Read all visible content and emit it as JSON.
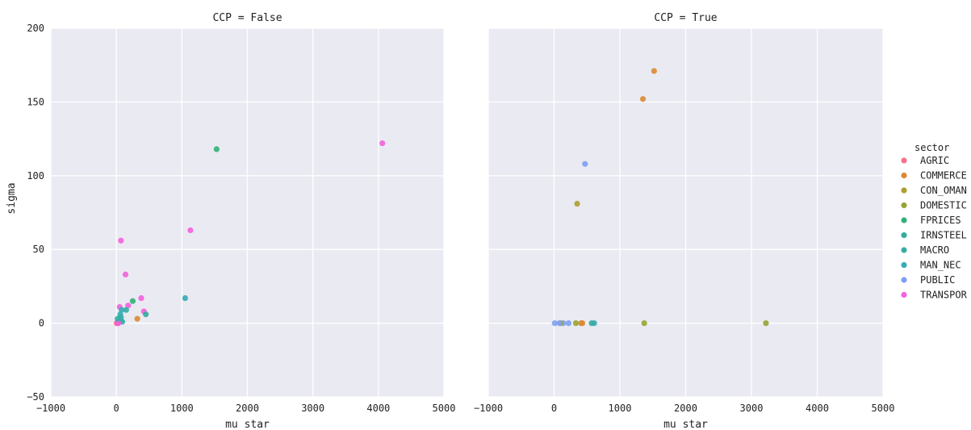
{
  "chart_data": {
    "type": "scatter",
    "facet_var": "CCP",
    "hue_var": "sector",
    "xlabel": "mu star",
    "ylabel": "sigma",
    "xlim": [
      -1000,
      5000
    ],
    "ylim": [
      -50,
      200
    ],
    "xticks": [
      -1000,
      0,
      1000,
      2000,
      3000,
      4000,
      5000
    ],
    "yticks": [
      -50,
      0,
      50,
      100,
      150,
      200
    ],
    "grid": true,
    "legend_position": "right",
    "legend_title": "sector",
    "sectors": [
      {
        "name": "AGRIC",
        "color": "#f77189"
      },
      {
        "name": "COMMERCE",
        "color": "#dc8932"
      },
      {
        "name": "CON_OMAN",
        "color": "#ae9d31"
      },
      {
        "name": "DOMESTIC",
        "color": "#97a431"
      },
      {
        "name": "FPRICES",
        "color": "#33b07a"
      },
      {
        "name": "IRNSTEEL",
        "color": "#35ac9d"
      },
      {
        "name": "MACRO",
        "color": "#36ada4"
      },
      {
        "name": "MAN_NEC",
        "color": "#38aab7"
      },
      {
        "name": "PUBLIC",
        "color": "#7e9ff4"
      },
      {
        "name": "TRANSPOR",
        "color": "#f461dd"
      }
    ],
    "panels": [
      {
        "title": "CCP = False",
        "points": [
          {
            "sector": "FPRICES",
            "x": 1530,
            "y": 118
          },
          {
            "sector": "TRANSPOR",
            "x": 4060,
            "y": 122
          },
          {
            "sector": "TRANSPOR",
            "x": 1130,
            "y": 63
          },
          {
            "sector": "TRANSPOR",
            "x": 70,
            "y": 56
          },
          {
            "sector": "TRANSPOR",
            "x": 140,
            "y": 33
          },
          {
            "sector": "MAN_NEC",
            "x": 1050,
            "y": 17
          },
          {
            "sector": "TRANSPOR",
            "x": 380,
            "y": 17
          },
          {
            "sector": "FPRICES",
            "x": 250,
            "y": 15
          },
          {
            "sector": "TRANSPOR",
            "x": 180,
            "y": 12
          },
          {
            "sector": "TRANSPOR",
            "x": 50,
            "y": 11
          },
          {
            "sector": "MACRO",
            "x": 150,
            "y": 9
          },
          {
            "sector": "TRANSPOR",
            "x": 420,
            "y": 8
          },
          {
            "sector": "IRNSTEEL",
            "x": 450,
            "y": 6
          },
          {
            "sector": "COMMERCE",
            "x": 320,
            "y": 3
          },
          {
            "sector": "MAN_NEC",
            "x": 80,
            "y": 9
          },
          {
            "sector": "MAN_NEC",
            "x": 60,
            "y": 6
          },
          {
            "sector": "MACRO",
            "x": 70,
            "y": 4
          },
          {
            "sector": "MACRO",
            "x": 60,
            "y": 2
          },
          {
            "sector": "IRNSTEEL",
            "x": 90,
            "y": 1
          },
          {
            "sector": "MAN_NEC",
            "x": 40,
            "y": 1
          },
          {
            "sector": "PUBLIC",
            "x": 20,
            "y": 1
          },
          {
            "sector": "TRANSPOR",
            "x": 10,
            "y": 0
          },
          {
            "sector": "AGRIC",
            "x": 5,
            "y": 0
          },
          {
            "sector": "TRANSPOR",
            "x": 30,
            "y": 0
          },
          {
            "sector": "MACRO",
            "x": 20,
            "y": 3
          }
        ]
      },
      {
        "title": "CCP = True",
        "points": [
          {
            "sector": "COMMERCE",
            "x": 1520,
            "y": 171
          },
          {
            "sector": "COMMERCE",
            "x": 1350,
            "y": 152
          },
          {
            "sector": "PUBLIC",
            "x": 470,
            "y": 108
          },
          {
            "sector": "CON_OMAN",
            "x": 350,
            "y": 81
          },
          {
            "sector": "DOMESTIC",
            "x": 3220,
            "y": 0
          },
          {
            "sector": "DOMESTIC",
            "x": 1370,
            "y": 0
          },
          {
            "sector": "MAN_NEC",
            "x": 610,
            "y": 0
          },
          {
            "sector": "IRNSTEEL",
            "x": 570,
            "y": 0
          },
          {
            "sector": "COMMERCE",
            "x": 430,
            "y": 0
          },
          {
            "sector": "COMMERCE",
            "x": 410,
            "y": 0
          },
          {
            "sector": "DOMESTIC",
            "x": 330,
            "y": 0
          },
          {
            "sector": "PUBLIC",
            "x": 220,
            "y": 0
          },
          {
            "sector": "PUBLIC",
            "x": 140,
            "y": 0
          },
          {
            "sector": "DOMESTIC",
            "x": 100,
            "y": 0
          },
          {
            "sector": "PUBLIC",
            "x": 80,
            "y": 0
          },
          {
            "sector": "PUBLIC",
            "x": 10,
            "y": 0
          }
        ]
      }
    ]
  }
}
